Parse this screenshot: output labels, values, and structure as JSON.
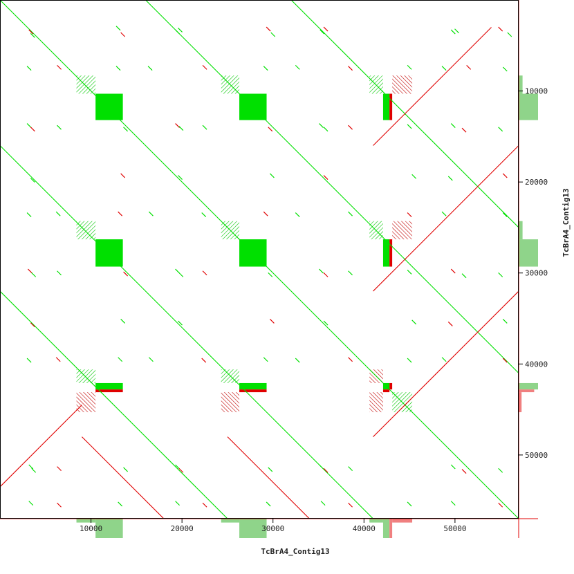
{
  "chart_data": {
    "type": "scatter",
    "plot_kind": "dotplot",
    "xlabel": "TcBrA4_Contig13",
    "ylabel": "TcBrA4_Contig13",
    "xlim": [
      0,
      57000
    ],
    "ylim": [
      0,
      57000
    ],
    "y_inverted": true,
    "x_ticks": [
      10000,
      20000,
      30000,
      40000,
      50000
    ],
    "y_ticks": [
      10000,
      20000,
      30000,
      40000,
      50000
    ],
    "colors": {
      "forward": "#00e000",
      "reverse": "#e00000",
      "forward_light": "#8fd48a",
      "reverse_light": "#f08080"
    },
    "series": [
      {
        "name": "forward",
        "segments": [
          {
            "x": [
              0,
              57000
            ],
            "y": [
              0,
              57000
            ]
          },
          {
            "x": [
              16000,
              57000
            ],
            "y": [
              0,
              41000
            ]
          },
          {
            "x": [
              0,
              41000
            ],
            "y": [
              16000,
              57000
            ]
          },
          {
            "x": [
              32000,
              57000
            ],
            "y": [
              0,
              25000
            ]
          },
          {
            "x": [
              0,
              25000
            ],
            "y": [
              32000,
              57000
            ]
          }
        ]
      },
      {
        "name": "reverse",
        "segments": [
          {
            "x": [
              41000,
              54000
            ],
            "y": [
              16000,
              3000
            ]
          },
          {
            "x": [
              41000,
              57000
            ],
            "y": [
              32000,
              16000
            ]
          },
          {
            "x": [
              41000,
              57000
            ],
            "y": [
              48000,
              32000
            ]
          },
          {
            "x": [
              25000,
              41000
            ],
            "y": [
              48000,
              64000
            ]
          },
          {
            "x": [
              9000,
              25000
            ],
            "y": [
              48000,
              64000
            ]
          },
          {
            "x": [
              0,
              9000
            ],
            "y": [
              53500,
              44500
            ]
          }
        ]
      }
    ],
    "blocks": [
      {
        "kind": "solid",
        "color": "forward",
        "x": [
          10500,
          13500
        ],
        "y": [
          10300,
          13200
        ]
      },
      {
        "kind": "solid",
        "color": "forward",
        "x": [
          26300,
          29300
        ],
        "y": [
          10300,
          13200
        ]
      },
      {
        "kind": "solid",
        "color": "forward",
        "x": [
          10500,
          13500
        ],
        "y": [
          26300,
          29300
        ]
      },
      {
        "kind": "solid",
        "color": "forward",
        "x": [
          26300,
          29300
        ],
        "y": [
          26300,
          29300
        ]
      },
      {
        "kind": "solid",
        "color": "forward",
        "x": [
          42100,
          42800
        ],
        "y": [
          10300,
          13200
        ]
      },
      {
        "kind": "solid",
        "color": "reverse",
        "x": [
          42800,
          43100
        ],
        "y": [
          10300,
          13200
        ]
      },
      {
        "kind": "solid",
        "color": "forward",
        "x": [
          42100,
          42800
        ],
        "y": [
          26300,
          29300
        ]
      },
      {
        "kind": "solid",
        "color": "reverse",
        "x": [
          42800,
          43100
        ],
        "y": [
          26300,
          29300
        ]
      },
      {
        "kind": "solid",
        "color": "forward",
        "x": [
          10500,
          13500
        ],
        "y": [
          42100,
          42800
        ]
      },
      {
        "kind": "solid",
        "color": "reverse",
        "x": [
          10500,
          13500
        ],
        "y": [
          42800,
          43100
        ]
      },
      {
        "kind": "solid",
        "color": "forward",
        "x": [
          26300,
          29300
        ],
        "y": [
          42100,
          42800
        ]
      },
      {
        "kind": "solid",
        "color": "reverse",
        "x": [
          26300,
          29300
        ],
        "y": [
          42800,
          43100
        ]
      },
      {
        "kind": "solid",
        "color": "forward",
        "x": [
          42100,
          42800
        ],
        "y": [
          42100,
          42800
        ]
      },
      {
        "kind": "solid",
        "color": "reverse",
        "x": [
          42800,
          43100
        ],
        "y": [
          42100,
          42800
        ]
      },
      {
        "kind": "solid",
        "color": "reverse",
        "x": [
          42100,
          42800
        ],
        "y": [
          42800,
          43100
        ]
      },
      {
        "kind": "hatch",
        "color": "forward",
        "x": [
          8400,
          10500
        ],
        "y": [
          8300,
          10300
        ]
      },
      {
        "kind": "hatch",
        "color": "forward",
        "x": [
          24300,
          26300
        ],
        "y": [
          8300,
          10300
        ]
      },
      {
        "kind": "hatch",
        "color": "forward",
        "x": [
          40600,
          42100
        ],
        "y": [
          8300,
          10300
        ]
      },
      {
        "kind": "hatch",
        "color": "reverse",
        "x": [
          43100,
          45300
        ],
        "y": [
          8300,
          10300
        ]
      },
      {
        "kind": "hatch",
        "color": "forward",
        "x": [
          8400,
          10500
        ],
        "y": [
          24300,
          26300
        ]
      },
      {
        "kind": "hatch",
        "color": "forward",
        "x": [
          24300,
          26300
        ],
        "y": [
          24300,
          26300
        ]
      },
      {
        "kind": "hatch",
        "color": "forward",
        "x": [
          40600,
          42100
        ],
        "y": [
          24300,
          26300
        ]
      },
      {
        "kind": "hatch",
        "color": "reverse",
        "x": [
          43100,
          45300
        ],
        "y": [
          24300,
          26300
        ]
      },
      {
        "kind": "hatch",
        "color": "forward",
        "x": [
          8400,
          10500
        ],
        "y": [
          40600,
          42100
        ]
      },
      {
        "kind": "hatch",
        "color": "forward",
        "x": [
          24300,
          26300
        ],
        "y": [
          40600,
          42100
        ]
      },
      {
        "kind": "hatch",
        "color": "reverse",
        "x": [
          40600,
          42100
        ],
        "y": [
          40600,
          42100
        ]
      },
      {
        "kind": "hatch",
        "color": "reverse",
        "x": [
          8400,
          10500
        ],
        "y": [
          43100,
          45300
        ]
      },
      {
        "kind": "hatch",
        "color": "reverse",
        "x": [
          24300,
          26300
        ],
        "y": [
          43100,
          45300
        ]
      },
      {
        "kind": "hatch",
        "color": "reverse",
        "x": [
          40600,
          42100
        ],
        "y": [
          43100,
          45300
        ]
      },
      {
        "kind": "hatch",
        "color": "forward",
        "x": [
          43100,
          45300
        ],
        "y": [
          43100,
          45300
        ]
      }
    ],
    "margin_profiles": [
      {
        "axis": "x",
        "color": "forward_light",
        "x": [
          8400,
          10500
        ],
        "h": 0.2
      },
      {
        "axis": "x",
        "color": "forward_light",
        "x": [
          10500,
          13500
        ],
        "h": 1.0
      },
      {
        "axis": "x",
        "color": "forward_light",
        "x": [
          24300,
          26300
        ],
        "h": 0.2
      },
      {
        "axis": "x",
        "color": "forward_light",
        "x": [
          26300,
          29300
        ],
        "h": 1.0
      },
      {
        "axis": "x",
        "color": "forward_light",
        "x": [
          40600,
          42100
        ],
        "h": 0.2
      },
      {
        "axis": "x",
        "color": "forward_light",
        "x": [
          42100,
          42800
        ],
        "h": 1.0
      },
      {
        "axis": "x",
        "color": "reverse_light",
        "x": [
          42800,
          43100
        ],
        "h": 1.0
      },
      {
        "axis": "x",
        "color": "reverse_light",
        "x": [
          43100,
          45300
        ],
        "h": 0.2
      },
      {
        "axis": "y",
        "color": "forward_light",
        "x": [
          8300,
          10300
        ],
        "h": 0.2
      },
      {
        "axis": "y",
        "color": "forward_light",
        "x": [
          10300,
          13200
        ],
        "h": 1.0
      },
      {
        "axis": "y",
        "color": "forward_light",
        "x": [
          24300,
          26300
        ],
        "h": 0.2
      },
      {
        "axis": "y",
        "color": "forward_light",
        "x": [
          26300,
          29300
        ],
        "h": 1.0
      },
      {
        "axis": "y",
        "color": "forward_light",
        "x": [
          42100,
          42800
        ],
        "h": 1.0
      },
      {
        "axis": "y",
        "color": "reverse_light",
        "x": [
          42800,
          43100
        ],
        "h": 0.8
      },
      {
        "axis": "y",
        "color": "reverse_light",
        "x": [
          43100,
          45300
        ],
        "h": 0.15
      }
    ],
    "noise_dots": [
      [
        3400,
        3500
      ],
      [
        3600,
        3900
      ],
      [
        13000,
        3100
      ],
      [
        13500,
        3800
      ],
      [
        19500,
        3500
      ],
      [
        19800,
        3300
      ],
      [
        29500,
        3200
      ],
      [
        30000,
        3800
      ],
      [
        35400,
        3500
      ],
      [
        35800,
        3200
      ],
      [
        49800,
        3500
      ],
      [
        50200,
        3400
      ],
      [
        55000,
        3200
      ],
      [
        56000,
        3800
      ],
      [
        3200,
        7500
      ],
      [
        6500,
        7400
      ],
      [
        13000,
        7500
      ],
      [
        16500,
        7500
      ],
      [
        22500,
        7400
      ],
      [
        29200,
        7500
      ],
      [
        32700,
        7400
      ],
      [
        38500,
        7500
      ],
      [
        45000,
        7400
      ],
      [
        48800,
        7500
      ],
      [
        51500,
        7400
      ],
      [
        55500,
        7600
      ],
      [
        3200,
        13800
      ],
      [
        3600,
        14200
      ],
      [
        6500,
        14000
      ],
      [
        13800,
        14200
      ],
      [
        19500,
        13800
      ],
      [
        19900,
        14100
      ],
      [
        22500,
        14000
      ],
      [
        29700,
        14200
      ],
      [
        35300,
        13800
      ],
      [
        35800,
        14200
      ],
      [
        38500,
        14000
      ],
      [
        45000,
        13900
      ],
      [
        49800,
        13800
      ],
      [
        51000,
        14300
      ],
      [
        55000,
        14200
      ],
      [
        3600,
        19800
      ],
      [
        13500,
        19300
      ],
      [
        19800,
        19500
      ],
      [
        29900,
        19300
      ],
      [
        35800,
        19500
      ],
      [
        45500,
        19400
      ],
      [
        49500,
        19600
      ],
      [
        55500,
        19300
      ],
      [
        3200,
        23600
      ],
      [
        6400,
        23500
      ],
      [
        13200,
        23500
      ],
      [
        16600,
        23500
      ],
      [
        22400,
        23600
      ],
      [
        29200,
        23500
      ],
      [
        32700,
        23600
      ],
      [
        38500,
        23500
      ],
      [
        45000,
        23600
      ],
      [
        48800,
        23500
      ],
      [
        55500,
        23600
      ],
      [
        3300,
        29800
      ],
      [
        3700,
        30200
      ],
      [
        6500,
        30000
      ],
      [
        13800,
        30100
      ],
      [
        19500,
        29800
      ],
      [
        19900,
        30200
      ],
      [
        22500,
        30000
      ],
      [
        29700,
        30200
      ],
      [
        35300,
        29800
      ],
      [
        35800,
        30200
      ],
      [
        38500,
        30000
      ],
      [
        45000,
        29900
      ],
      [
        49800,
        29800
      ],
      [
        51000,
        30300
      ],
      [
        55000,
        30200
      ],
      [
        3600,
        35700
      ],
      [
        13500,
        35300
      ],
      [
        19800,
        35500
      ],
      [
        29900,
        35300
      ],
      [
        35800,
        35500
      ],
      [
        45500,
        35400
      ],
      [
        49500,
        35600
      ],
      [
        55500,
        35300
      ],
      [
        3200,
        39600
      ],
      [
        6400,
        39500
      ],
      [
        13200,
        39500
      ],
      [
        16600,
        39500
      ],
      [
        22400,
        39600
      ],
      [
        29200,
        39500
      ],
      [
        32700,
        39600
      ],
      [
        38500,
        39500
      ],
      [
        45000,
        39600
      ],
      [
        48800,
        39500
      ],
      [
        55500,
        39600
      ],
      [
        3400,
        51300
      ],
      [
        3700,
        51700
      ],
      [
        6500,
        51500
      ],
      [
        13800,
        51600
      ],
      [
        19500,
        51300
      ],
      [
        19900,
        51700
      ],
      [
        29700,
        51600
      ],
      [
        35300,
        51300
      ],
      [
        35800,
        51700
      ],
      [
        38500,
        51500
      ],
      [
        49800,
        51300
      ],
      [
        51000,
        51800
      ],
      [
        55000,
        51700
      ],
      [
        3400,
        55300
      ],
      [
        6500,
        55500
      ],
      [
        13200,
        55400
      ],
      [
        19500,
        55300
      ],
      [
        22500,
        55500
      ],
      [
        29500,
        55400
      ],
      [
        35500,
        55300
      ],
      [
        38500,
        55500
      ],
      [
        45000,
        55400
      ],
      [
        49800,
        55300
      ],
      [
        55000,
        55500
      ]
    ]
  }
}
